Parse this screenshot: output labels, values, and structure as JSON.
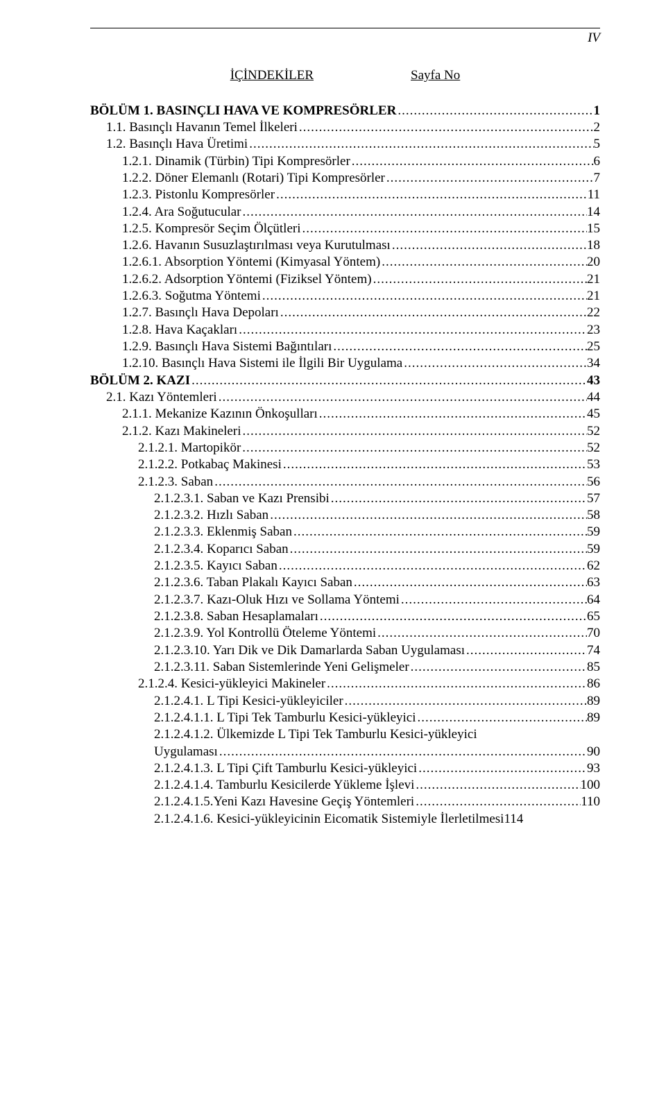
{
  "page_number": "IV",
  "header": {
    "left": "İÇİNDEKİLER",
    "right": "Sayfa No"
  },
  "toc": [
    {
      "title": "BÖLÜM 1. BASINÇLI HAVA VE KOMPRESÖRLER",
      "page": "1",
      "level": 0,
      "bold": true
    },
    {
      "title": "1.1. Basınçlı Havanın Temel İlkeleri",
      "page": "2",
      "level": 1,
      "bold": false
    },
    {
      "title": "1.2. Basınçlı Hava Üretimi",
      "page": "5",
      "level": 1,
      "bold": false
    },
    {
      "title": "1.2.1. Dinamik (Türbin) Tipi Kompresörler",
      "page": "6",
      "level": 2,
      "bold": false
    },
    {
      "title": "1.2.2. Döner Elemanlı (Rotari) Tipi Kompresörler",
      "page": "7",
      "level": 2,
      "bold": false
    },
    {
      "title": "1.2.3. Pistonlu Kompresörler",
      "page": "11",
      "level": 2,
      "bold": false
    },
    {
      "title": "1.2.4. Ara Soğutucular",
      "page": "14",
      "level": 2,
      "bold": false
    },
    {
      "title": "1.2.5. Kompresör Seçim Ölçütleri",
      "page": "15",
      "level": 2,
      "bold": false
    },
    {
      "title": "1.2.6. Havanın Susuzlaştırılması veya Kurutulması",
      "page": "18",
      "level": 2,
      "bold": false
    },
    {
      "title": "1.2.6.1. Absorption Yöntemi (Kimyasal Yöntem)",
      "page": "20",
      "level": 2,
      "bold": false
    },
    {
      "title": "1.2.6.2. Adsorption Yöntemi (Fiziksel Yöntem)",
      "page": "21",
      "level": 2,
      "bold": false
    },
    {
      "title": "1.2.6.3. Soğutma Yöntemi",
      "page": "21",
      "level": 2,
      "bold": false
    },
    {
      "title": "1.2.7. Basınçlı Hava Depoları",
      "page": "22",
      "level": 2,
      "bold": false
    },
    {
      "title": "1.2.8. Hava Kaçakları",
      "page": "23",
      "level": 2,
      "bold": false
    },
    {
      "title": "1.2.9. Basınçlı Hava Sistemi Bağıntıları",
      "page": "25",
      "level": 2,
      "bold": false
    },
    {
      "title": "1.2.10. Basınçlı Hava Sistemi ile İlgili Bir Uygulama",
      "page": "34",
      "level": 2,
      "bold": false
    },
    {
      "title": "BÖLÜM 2. KAZI",
      "page": "43",
      "level": 0,
      "bold": true
    },
    {
      "title": "2.1. Kazı Yöntemleri",
      "page": "44",
      "level": 1,
      "bold": false
    },
    {
      "title": "2.1.1. Mekanize Kazının Önkoşulları",
      "page": "45",
      "level": 2,
      "bold": false
    },
    {
      "title": "2.1.2. Kazı Makineleri",
      "page": "52",
      "level": 2,
      "bold": false
    },
    {
      "title": "2.1.2.1. Martopikör",
      "page": "52",
      "level": 3,
      "bold": false
    },
    {
      "title": "2.1.2.2. Potkabaç Makinesi",
      "page": "53",
      "level": 3,
      "bold": false
    },
    {
      "title": "2.1.2.3. Saban",
      "page": "56",
      "level": 3,
      "bold": false
    },
    {
      "title": "2.1.2.3.1. Saban ve Kazı Prensibi",
      "page": "57",
      "level": 4,
      "bold": false
    },
    {
      "title": "2.1.2.3.2. Hızlı Saban",
      "page": "58",
      "level": 4,
      "bold": false
    },
    {
      "title": "2.1.2.3.3. Eklenmiş Saban",
      "page": "59",
      "level": 4,
      "bold": false
    },
    {
      "title": "2.1.2.3.4. Koparıcı Saban",
      "page": "59",
      "level": 4,
      "bold": false
    },
    {
      "title": "2.1.2.3.5. Kayıcı Saban",
      "page": "62",
      "level": 4,
      "bold": false
    },
    {
      "title": "2.1.2.3.6. Taban Plakalı Kayıcı Saban",
      "page": "63",
      "level": 4,
      "bold": false
    },
    {
      "title": "2.1.2.3.7. Kazı-Oluk Hızı ve Sollama Yöntemi",
      "page": "64",
      "level": 4,
      "bold": false
    },
    {
      "title": "2.1.2.3.8. Saban Hesaplamaları",
      "page": "65",
      "level": 4,
      "bold": false
    },
    {
      "title": "2.1.2.3.9. Yol Kontrollü Öteleme Yöntemi",
      "page": "70",
      "level": 4,
      "bold": false
    },
    {
      "title": "2.1.2.3.10. Yarı Dik ve Dik Damarlarda Saban Uygulaması",
      "page": "74",
      "level": 4,
      "bold": false
    },
    {
      "title": "2.1.2.3.11. Saban Sistemlerinde Yeni Gelişmeler",
      "page": "85",
      "level": 4,
      "bold": false
    },
    {
      "title": "2.1.2.4. Kesici-yükleyici Makineler",
      "page": "86",
      "level": 3,
      "bold": false
    },
    {
      "title": "2.1.2.4.1. L Tipi Kesici-yükleyiciler",
      "page": "89",
      "level": 4,
      "bold": false
    },
    {
      "title": "2.1.2.4.1.1. L Tipi Tek Tamburlu Kesici-yükleyici",
      "page": "89",
      "level": 4,
      "bold": false
    },
    {
      "title": "2.1.2.4.1.2. Ülkemizde L Tipi Tek Tamburlu Kesici-yükleyici Uygulaması",
      "page": "90",
      "level": 4,
      "bold": false,
      "wrap": true
    },
    {
      "title": "2.1.2.4.1.3. L Tipi Çift Tamburlu Kesici-yükleyici",
      "page": "93",
      "level": 4,
      "bold": false
    },
    {
      "title": "2.1.2.4.1.4. Tamburlu Kesicilerde Yükleme İşlevi",
      "page": "100",
      "level": 4,
      "bold": false
    },
    {
      "title": "2.1.2.4.1.5.Yeni Kazı Havesine Geçiş Yöntemleri",
      "page": "110",
      "level": 4,
      "bold": false
    },
    {
      "title": "2.1.2.4.1.6. Kesici-yükleyicinin Eicomatik Sistemiyle İlerletilmesi",
      "page": "114",
      "level": 4,
      "bold": false,
      "noleader": true
    }
  ]
}
